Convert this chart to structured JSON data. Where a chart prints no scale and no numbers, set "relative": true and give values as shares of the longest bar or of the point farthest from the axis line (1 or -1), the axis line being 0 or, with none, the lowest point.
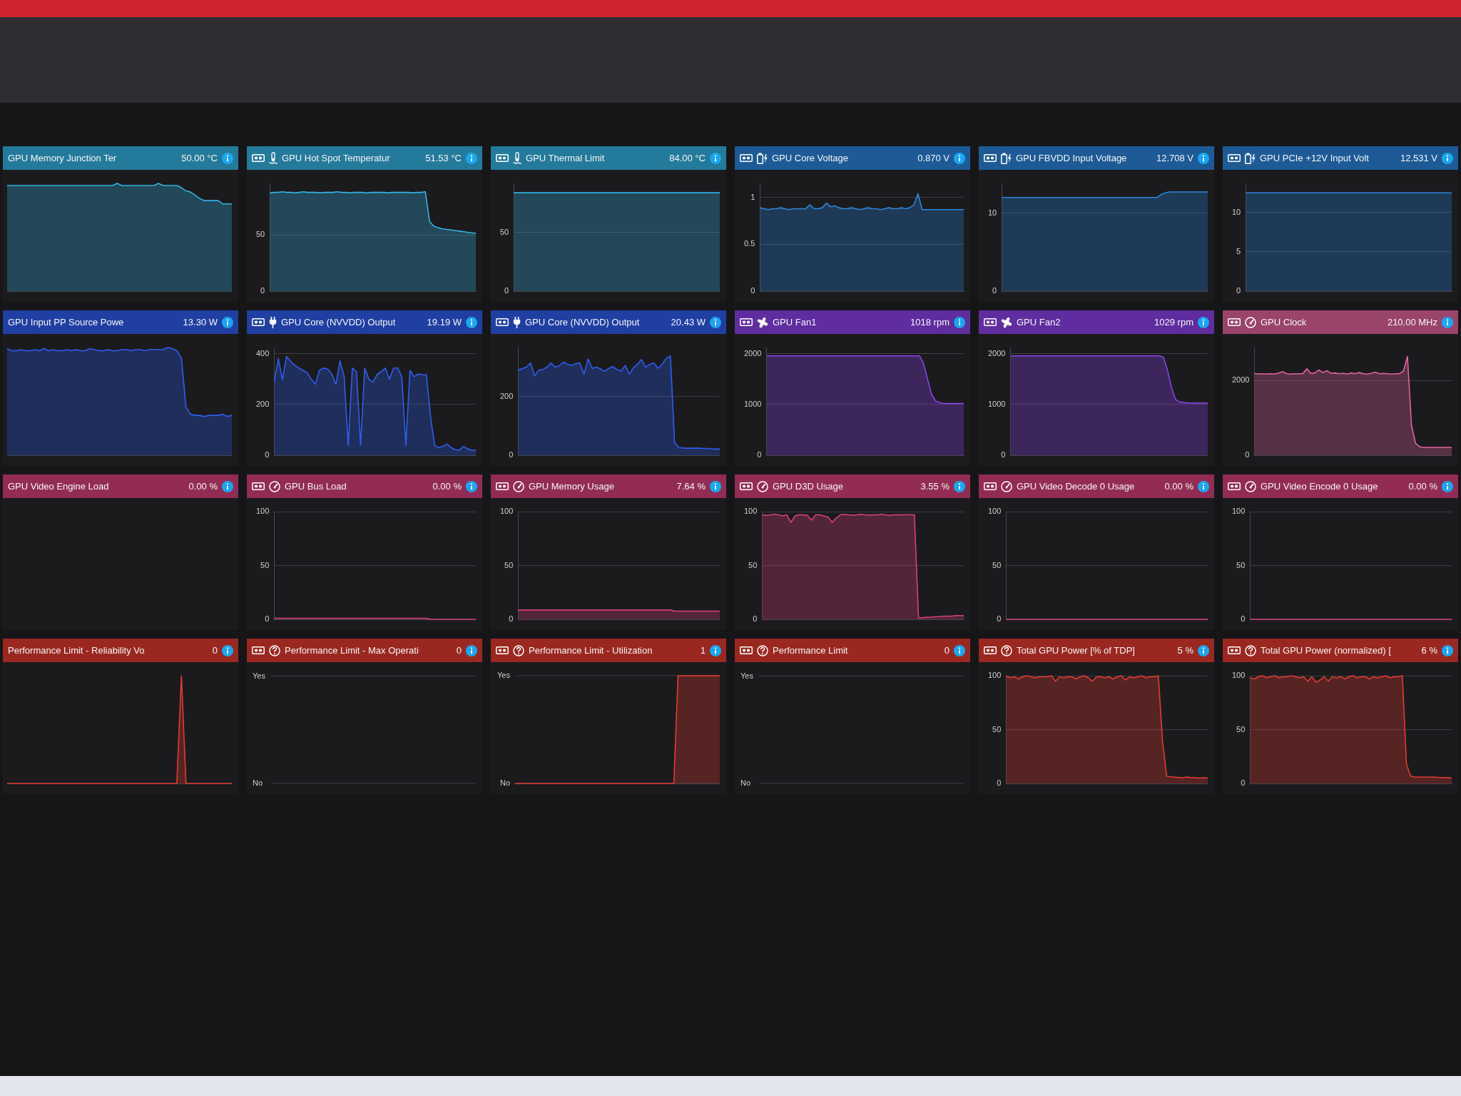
{
  "chart_data": [
    {
      "type": "area",
      "title": "GPU Memory Junction Ter",
      "subtitle": "50.00 °C",
      "relative": true,
      "marker": "none",
      "color": "#35b3e4",
      "categories": [
        null,
        null,
        null,
        null,
        null,
        null,
        null,
        null,
        null,
        null,
        null,
        null,
        null,
        null,
        null,
        null,
        null,
        null,
        null,
        null,
        null,
        null,
        null,
        null,
        null,
        null,
        null,
        null,
        null,
        null,
        null,
        null,
        null,
        null,
        null,
        null,
        null,
        null,
        null,
        null,
        null,
        null,
        null,
        null,
        null,
        null,
        null,
        null,
        null,
        null
      ],
      "values": [
        0.98,
        0.98,
        0.98,
        0.98,
        0.98,
        0.98,
        0.98,
        0.98,
        0.98,
        0.98,
        0.98,
        0.98,
        0.98,
        0.98,
        0.98,
        0.98,
        0.98,
        0.98,
        0.98,
        0.98,
        0.98,
        0.98,
        0.98,
        0.98,
        1,
        0.98,
        0.98,
        0.98,
        0.98,
        0.98,
        0.98,
        0.98,
        0.98,
        1,
        0.98,
        0.98,
        0.98,
        0.98,
        0.96,
        0.93,
        0.92,
        0.89,
        0.86,
        0.84,
        0.84,
        0.84,
        0.84,
        0.81,
        0.81,
        0.81
      ]
    },
    {
      "type": "area",
      "title": "GPU Hot Spot Temperatur",
      "subtitle": "51.53 °C",
      "marker": "none",
      "grid": "y",
      "color": "#35b3e4",
      "ylim": [
        0,
        96
      ],
      "yticks": [
        0,
        50
      ],
      "categories": [
        null,
        null,
        null,
        null,
        null,
        null,
        null,
        null,
        null,
        null,
        null,
        null,
        null,
        null,
        null,
        null,
        null,
        null,
        null,
        null,
        null,
        null,
        null,
        null,
        null,
        null,
        null,
        null,
        null,
        null,
        null,
        null,
        null,
        null,
        null,
        null,
        null,
        null,
        null,
        null,
        null,
        null,
        null,
        null,
        null,
        null,
        null,
        null,
        null,
        null
      ],
      "values": [
        87.5,
        88,
        88,
        88.5,
        88,
        88,
        87.5,
        88,
        88.5,
        88,
        88,
        88,
        87.5,
        88,
        88,
        88,
        88.5,
        88,
        88,
        87.5,
        88,
        88,
        88,
        87.5,
        88,
        88,
        88,
        88,
        87.5,
        88,
        88,
        88,
        88,
        88,
        87.5,
        88,
        88,
        88.5,
        62,
        58,
        56.5,
        55.5,
        55,
        54.5,
        54,
        53.5,
        53,
        52.5,
        52,
        51.5
      ]
    },
    {
      "type": "area",
      "title": "GPU Thermal Limit",
      "subtitle": "84.00 °C",
      "marker": "none",
      "grid": "y",
      "color": "#35b3e4",
      "ylim": [
        0,
        92
      ],
      "yticks": [
        0,
        50
      ],
      "categories": [
        null,
        null,
        null,
        null,
        null,
        null,
        null,
        null,
        null,
        null,
        null,
        null,
        null,
        null,
        null,
        null,
        null,
        null,
        null,
        null,
        null,
        null,
        null,
        null,
        null,
        null,
        null,
        null,
        null,
        null,
        null,
        null,
        null,
        null,
        null,
        null,
        null,
        null,
        null,
        null,
        null,
        null,
        null,
        null,
        null,
        null,
        null,
        null,
        null,
        null
      ],
      "values": [
        84,
        84,
        84,
        84,
        84,
        84,
        84,
        84,
        84,
        84,
        84,
        84,
        84,
        84,
        84,
        84,
        84,
        84,
        84,
        84,
        84,
        84,
        84,
        84,
        84,
        84,
        84,
        84,
        84,
        84,
        84,
        84,
        84,
        84,
        84,
        84,
        84,
        84,
        84,
        84,
        84,
        84,
        84,
        84,
        84,
        84,
        84,
        84,
        84,
        84
      ]
    },
    {
      "type": "area",
      "title": "GPU Core Voltage",
      "subtitle": "0.870 V",
      "marker": "none",
      "grid": "y",
      "color": "#2c86dc",
      "ylim": [
        0,
        1.15
      ],
      "yticks": [
        0,
        0.5,
        1
      ],
      "categories": [
        null,
        null,
        null,
        null,
        null,
        null,
        null,
        null,
        null,
        null,
        null,
        null,
        null,
        null,
        null,
        null,
        null,
        null,
        null,
        null,
        null,
        null,
        null,
        null,
        null,
        null,
        null,
        null,
        null,
        null,
        null,
        null,
        null,
        null,
        null,
        null,
        null,
        null,
        null,
        null,
        null,
        null,
        null,
        null,
        null,
        null,
        null,
        null,
        null,
        null
      ],
      "values": [
        0.89,
        0.88,
        0.87,
        0.88,
        0.88,
        0.89,
        0.88,
        0.87,
        0.88,
        0.88,
        0.88,
        0.88,
        0.92,
        0.88,
        0.88,
        0.89,
        0.94,
        0.9,
        0.91,
        0.89,
        0.88,
        0.88,
        0.89,
        0.88,
        0.87,
        0.88,
        0.89,
        0.88,
        0.88,
        0.87,
        0.88,
        0.89,
        0.88,
        0.88,
        0.89,
        0.88,
        0.89,
        0.92,
        1.04,
        0.87,
        0.87,
        0.87,
        0.87,
        0.87,
        0.87,
        0.87,
        0.87,
        0.87,
        0.87,
        0.87
      ]
    },
    {
      "type": "area",
      "title": "GPU FBVDD Input Voltage",
      "subtitle": "12.708 V",
      "marker": "none",
      "grid": "y",
      "color": "#2c86dc",
      "ylim": [
        0,
        13.8
      ],
      "yticks": [
        0,
        10
      ],
      "categories": [
        null,
        null,
        null,
        null,
        null,
        null,
        null,
        null,
        null,
        null,
        null,
        null,
        null,
        null,
        null,
        null,
        null,
        null,
        null,
        null,
        null,
        null,
        null,
        null,
        null,
        null,
        null,
        null,
        null,
        null,
        null,
        null,
        null,
        null,
        null,
        null,
        null,
        null,
        null,
        null,
        null,
        null,
        null,
        null,
        null,
        null,
        null,
        null,
        null,
        null
      ],
      "values": [
        12,
        12,
        12,
        12,
        12,
        12,
        12,
        12,
        12,
        12,
        12,
        12,
        12,
        12,
        12,
        12,
        12,
        12,
        12,
        12,
        12,
        12,
        12,
        12,
        12,
        12,
        12,
        12,
        12,
        12,
        12,
        12,
        12,
        12,
        12,
        12,
        12,
        12,
        12.4,
        12.6,
        12.7,
        12.7,
        12.7,
        12.7,
        12.7,
        12.7,
        12.7,
        12.7,
        12.7,
        12.7
      ]
    },
    {
      "type": "area",
      "title": "GPU PCIe +12V Input Volt",
      "subtitle": "12.531 V",
      "marker": "none",
      "grid": "y",
      "color": "#2c86dc",
      "ylim": [
        0,
        13.7
      ],
      "yticks": [
        0,
        5,
        10
      ],
      "categories": [
        null,
        null,
        null,
        null,
        null,
        null,
        null,
        null,
        null,
        null,
        null,
        null,
        null,
        null,
        null,
        null,
        null,
        null,
        null,
        null,
        null,
        null,
        null,
        null,
        null,
        null,
        null,
        null,
        null,
        null,
        null,
        null,
        null,
        null,
        null,
        null,
        null,
        null,
        null,
        null,
        null,
        null,
        null,
        null,
        null,
        null,
        null,
        null,
        null,
        null
      ],
      "values": [
        12.5,
        12.5,
        12.5,
        12.5,
        12.5,
        12.5,
        12.5,
        12.5,
        12.5,
        12.5,
        12.5,
        12.5,
        12.5,
        12.5,
        12.5,
        12.5,
        12.5,
        12.5,
        12.5,
        12.5,
        12.5,
        12.5,
        12.5,
        12.5,
        12.5,
        12.5,
        12.5,
        12.5,
        12.5,
        12.5,
        12.5,
        12.5,
        12.5,
        12.5,
        12.5,
        12.5,
        12.5,
        12.5,
        12.5,
        12.5,
        12.5,
        12.5,
        12.5,
        12.5,
        12.5,
        12.5,
        12.5,
        12.5,
        12.5,
        12.5
      ]
    },
    {
      "type": "area",
      "title": "GPU Input PP Source Powe",
      "subtitle": "13.30 W",
      "relative": true,
      "marker": "none",
      "color": "#2f5df0",
      "categories": [
        null,
        null,
        null,
        null,
        null,
        null,
        null,
        null,
        null,
        null,
        null,
        null,
        null,
        null,
        null,
        null,
        null,
        null,
        null,
        null,
        null,
        null,
        null,
        null,
        null,
        null,
        null,
        null,
        null,
        null,
        null,
        null,
        null,
        null,
        null,
        null,
        null,
        null,
        null,
        null,
        null,
        null,
        null,
        null,
        null,
        null,
        null,
        null,
        null,
        null
      ],
      "values": [
        0.99,
        0.97,
        0.97,
        0.98,
        0.97,
        0.97,
        0.98,
        0.97,
        0.99,
        0.97,
        0.98,
        0.97,
        0.97,
        0.98,
        0.97,
        0.98,
        0.97,
        0.97,
        0.99,
        0.98,
        0.97,
        0.97,
        0.98,
        0.97,
        0.97,
        0.98,
        0.98,
        0.97,
        0.98,
        0.98,
        0.97,
        0.98,
        0.98,
        0.98,
        0.98,
        1,
        0.99,
        0.97,
        0.9,
        0.45,
        0.38,
        0.37,
        0.37,
        0.36,
        0.37,
        0.37,
        0.37,
        0.38,
        0.36,
        0.37
      ]
    },
    {
      "type": "area",
      "title": "GPU Core (NVVDD) Output",
      "subtitle": "19.19 W",
      "marker": "none",
      "grid": "y",
      "color": "#2f5df0",
      "ylim": [
        0,
        425
      ],
      "yticks": [
        0,
        200,
        400
      ],
      "categories": [
        null,
        null,
        null,
        null,
        null,
        null,
        null,
        null,
        null,
        null,
        null,
        null,
        null,
        null,
        null,
        null,
        null,
        null,
        null,
        null,
        null,
        null,
        null,
        null,
        null,
        null,
        null,
        null,
        null,
        null,
        null,
        null,
        null,
        null,
        null,
        null,
        null,
        null,
        null,
        null,
        null,
        null,
        null,
        null,
        null,
        null,
        null,
        null,
        null,
        null
      ],
      "values": [
        289,
        381,
        298,
        390,
        370,
        355,
        344,
        335,
        325,
        300,
        280,
        335,
        344,
        340,
        320,
        280,
        372,
        310,
        39,
        344,
        330,
        39,
        344,
        300,
        289,
        318,
        330,
        344,
        300,
        344,
        344,
        310,
        39,
        335,
        310,
        320,
        318,
        317,
        150,
        39,
        30,
        35,
        44,
        30,
        22,
        20,
        35,
        25,
        20,
        19
      ]
    },
    {
      "type": "area",
      "title": "GPU Core (NVVDD) Output",
      "subtitle": "20.43 W",
      "marker": "none",
      "grid": "y",
      "color": "#2f5df0",
      "ylim": [
        0,
        367
      ],
      "yticks": [
        0,
        200
      ],
      "categories": [
        null,
        null,
        null,
        null,
        null,
        null,
        null,
        null,
        null,
        null,
        null,
        null,
        null,
        null,
        null,
        null,
        null,
        null,
        null,
        null,
        null,
        null,
        null,
        null,
        null,
        null,
        null,
        null,
        null,
        null,
        null,
        null,
        null,
        null,
        null,
        null,
        null,
        null,
        null,
        null,
        null,
        null,
        null,
        null,
        null,
        null,
        null,
        null,
        null,
        null
      ],
      "values": [
        290,
        295,
        300,
        314,
        270,
        290,
        292,
        300,
        314,
        300,
        305,
        317,
        310,
        306,
        312,
        314,
        276,
        328,
        296,
        300,
        294,
        286,
        296,
        302,
        292,
        286,
        306,
        276,
        298,
        310,
        326,
        300,
        310,
        314,
        296,
        310,
        330,
        338,
        45,
        26,
        25,
        24,
        24,
        24,
        24,
        23,
        23,
        22,
        21,
        21
      ]
    },
    {
      "type": "area",
      "title": "GPU Fan1",
      "subtitle": "1018 rpm",
      "marker": "none",
      "grid": "y",
      "color": "#8c42ea",
      "ylim": [
        0,
        2125
      ],
      "yticks": [
        0,
        1000,
        2000
      ],
      "categories": [
        null,
        null,
        null,
        null,
        null,
        null,
        null,
        null,
        null,
        null,
        null,
        null,
        null,
        null,
        null,
        null,
        null,
        null,
        null,
        null,
        null,
        null,
        null,
        null,
        null,
        null,
        null,
        null,
        null,
        null,
        null,
        null,
        null,
        null,
        null,
        null,
        null,
        null,
        null,
        null,
        null,
        null,
        null,
        null,
        null,
        null,
        null,
        null,
        null,
        null
      ],
      "values": [
        1960,
        1960,
        1960,
        1960,
        1960,
        1960,
        1960,
        1960,
        1960,
        1960,
        1960,
        1960,
        1960,
        1960,
        1960,
        1960,
        1960,
        1960,
        1960,
        1960,
        1960,
        1960,
        1960,
        1960,
        1960,
        1960,
        1960,
        1960,
        1960,
        1960,
        1960,
        1960,
        1960,
        1960,
        1960,
        1960,
        1960,
        1960,
        1960,
        1810,
        1500,
        1200,
        1070,
        1040,
        1020,
        1020,
        1020,
        1020,
        1020,
        1020
      ]
    },
    {
      "type": "area",
      "title": "GPU Fan2",
      "subtitle": "1029 rpm",
      "marker": "none",
      "grid": "y",
      "color": "#8c42ea",
      "ylim": [
        0,
        2125
      ],
      "yticks": [
        0,
        1000,
        2000
      ],
      "categories": [
        null,
        null,
        null,
        null,
        null,
        null,
        null,
        null,
        null,
        null,
        null,
        null,
        null,
        null,
        null,
        null,
        null,
        null,
        null,
        null,
        null,
        null,
        null,
        null,
        null,
        null,
        null,
        null,
        null,
        null,
        null,
        null,
        null,
        null,
        null,
        null,
        null,
        null,
        null,
        null,
        null,
        null,
        null,
        null,
        null,
        null,
        null,
        null,
        null,
        null
      ],
      "values": [
        1960,
        1960,
        1960,
        1960,
        1960,
        1960,
        1960,
        1960,
        1960,
        1960,
        1960,
        1960,
        1960,
        1960,
        1960,
        1960,
        1960,
        1960,
        1960,
        1960,
        1960,
        1960,
        1960,
        1960,
        1960,
        1960,
        1960,
        1960,
        1960,
        1960,
        1960,
        1960,
        1960,
        1960,
        1960,
        1960,
        1960,
        1960,
        1930,
        1680,
        1330,
        1100,
        1050,
        1040,
        1030,
        1030,
        1030,
        1030,
        1030,
        1030
      ]
    },
    {
      "type": "area",
      "title": "GPU Clock",
      "subtitle": "210.00 MHz",
      "marker": "none",
      "grid": "y",
      "color": "#e2649e",
      "ylim": [
        0,
        2880
      ],
      "yticks": [
        0,
        2000
      ],
      "categories": [
        null,
        null,
        null,
        null,
        null,
        null,
        null,
        null,
        null,
        null,
        null,
        null,
        null,
        null,
        null,
        null,
        null,
        null,
        null,
        null,
        null,
        null,
        null,
        null,
        null,
        null,
        null,
        null,
        null,
        null,
        null,
        null,
        null,
        null,
        null,
        null,
        null,
        null,
        null,
        null,
        null,
        null,
        null,
        null,
        null,
        null,
        null,
        null,
        null,
        null
      ],
      "values": [
        2190,
        2170,
        2180,
        2170,
        2180,
        2170,
        2200,
        2230,
        2180,
        2170,
        2180,
        2180,
        2180,
        2310,
        2190,
        2200,
        2280,
        2210,
        2260,
        2190,
        2200,
        2180,
        2190,
        2170,
        2200,
        2180,
        2210,
        2180,
        2170,
        2190,
        2220,
        2180,
        2190,
        2180,
        2170,
        2180,
        2180,
        2250,
        2640,
        800,
        320,
        230,
        210,
        210,
        210,
        210,
        210,
        210,
        210,
        210
      ]
    },
    {
      "type": "other",
      "title": "GPU Video Engine Load",
      "subtitle": "0.00 %",
      "color": "#d8407c"
    },
    {
      "type": "area",
      "title": "GPU Bus Load",
      "subtitle": "0.00 %",
      "marker": "none",
      "grid": "y",
      "color": "#d8407c",
      "ylim": [
        0,
        100
      ],
      "yticks": [
        0,
        50,
        100
      ],
      "categories": [
        null,
        null,
        null,
        null,
        null,
        null,
        null,
        null,
        null,
        null,
        null,
        null,
        null,
        null,
        null,
        null,
        null,
        null,
        null,
        null,
        null,
        null,
        null,
        null,
        null,
        null,
        null,
        null,
        null,
        null,
        null,
        null,
        null,
        null,
        null,
        null,
        null,
        null,
        null,
        null,
        null,
        null,
        null,
        null,
        null,
        null,
        null,
        null,
        null,
        null
      ],
      "values": [
        1,
        1,
        1,
        1,
        1,
        1,
        1,
        1,
        1,
        1,
        1,
        1,
        1,
        1,
        1,
        1,
        1,
        1,
        1,
        1,
        1,
        1,
        1,
        1,
        1,
        1,
        1,
        1,
        1,
        1,
        1,
        1,
        1,
        1,
        1,
        1,
        1,
        1,
        0,
        0,
        0,
        0,
        0,
        0,
        0,
        0,
        0,
        0,
        0,
        0
      ]
    },
    {
      "type": "area",
      "title": "GPU Memory Usage",
      "subtitle": "7.64 %",
      "marker": "none",
      "grid": "y",
      "color": "#d8407c",
      "ylim": [
        0,
        100
      ],
      "yticks": [
        0,
        50,
        100
      ],
      "categories": [
        null,
        null,
        null,
        null,
        null,
        null,
        null,
        null,
        null,
        null,
        null,
        null,
        null,
        null,
        null,
        null,
        null,
        null,
        null,
        null,
        null,
        null,
        null,
        null,
        null,
        null,
        null,
        null,
        null,
        null,
        null,
        null,
        null,
        null,
        null,
        null,
        null,
        null,
        null,
        null,
        null,
        null,
        null,
        null,
        null,
        null,
        null,
        null,
        null,
        null
      ],
      "values": [
        8.7,
        8.7,
        8.7,
        8.7,
        8.7,
        8.7,
        8.7,
        8.7,
        8.7,
        8.7,
        8.7,
        8.7,
        8.7,
        8.7,
        8.7,
        8.7,
        8.7,
        8.7,
        8.7,
        8.7,
        8.7,
        8.7,
        8.7,
        8.7,
        8.7,
        8.7,
        8.7,
        8.7,
        8.7,
        8.7,
        8.7,
        8.7,
        8.7,
        8.7,
        8.7,
        8.7,
        8.7,
        8.7,
        7.6,
        7.6,
        7.6,
        7.6,
        7.6,
        7.6,
        7.6,
        7.6,
        7.6,
        7.6,
        7.6,
        7.6
      ]
    },
    {
      "type": "area",
      "title": "GPU D3D Usage",
      "subtitle": "3.55 %",
      "marker": "none",
      "grid": "y",
      "color": "#d8407c",
      "ylim": [
        0,
        100
      ],
      "yticks": [
        0,
        50,
        100
      ],
      "categories": [
        null,
        null,
        null,
        null,
        null,
        null,
        null,
        null,
        null,
        null,
        null,
        null,
        null,
        null,
        null,
        null,
        null,
        null,
        null,
        null,
        null,
        null,
        null,
        null,
        null,
        null,
        null,
        null,
        null,
        null,
        null,
        null,
        null,
        null,
        null,
        null,
        null,
        null,
        null,
        null,
        null,
        null,
        null,
        null,
        null,
        null,
        null,
        null,
        null,
        null
      ],
      "values": [
        97,
        96.5,
        97,
        97.5,
        97,
        96,
        97,
        90,
        96,
        97,
        97,
        96.5,
        92,
        97,
        97,
        96,
        95,
        90,
        94,
        97,
        97.5,
        97,
        96.5,
        97,
        97.5,
        97,
        96.8,
        97,
        97,
        97.5,
        97,
        96.5,
        97,
        97,
        97,
        97.2,
        97,
        97,
        1.5,
        1.5,
        2,
        2,
        2.5,
        2.5,
        3,
        3,
        3,
        3.5,
        3.5,
        3.5
      ]
    },
    {
      "type": "line",
      "title": "GPU Video Decode 0 Usage",
      "subtitle": "0.00 %",
      "marker": "none",
      "grid": "y",
      "color": "#d8407c",
      "ylim": [
        0,
        100
      ],
      "yticks": [
        0,
        50,
        100
      ],
      "categories": [
        null,
        null,
        null,
        null,
        null,
        null,
        null,
        null,
        null,
        null,
        null,
        null,
        null,
        null,
        null,
        null,
        null,
        null,
        null,
        null,
        null,
        null,
        null,
        null,
        null,
        null,
        null,
        null,
        null,
        null,
        null,
        null,
        null,
        null,
        null,
        null,
        null,
        null,
        null,
        null,
        null,
        null,
        null,
        null,
        null,
        null,
        null,
        null,
        null,
        null
      ],
      "values": [
        0,
        0,
        0,
        0,
        0,
        0,
        0,
        0,
        0,
        0,
        0,
        0,
        0,
        0,
        0,
        0,
        0,
        0,
        0,
        0,
        0,
        0,
        0,
        0,
        0,
        0,
        0,
        0,
        0,
        0,
        0,
        0,
        0,
        0,
        0,
        0,
        0,
        0,
        0,
        0,
        0,
        0,
        0,
        0,
        0,
        0,
        0,
        0,
        0,
        0
      ]
    },
    {
      "type": "line",
      "title": "GPU Video Encode 0 Usage",
      "subtitle": "0.00 %",
      "marker": "none",
      "grid": "y",
      "color": "#d8407c",
      "ylim": [
        0,
        100
      ],
      "yticks": [
        0,
        50,
        100
      ],
      "categories": [
        null,
        null,
        null,
        null,
        null,
        null,
        null,
        null,
        null,
        null,
        null,
        null,
        null,
        null,
        null,
        null,
        null,
        null,
        null,
        null,
        null,
        null,
        null,
        null,
        null,
        null,
        null,
        null,
        null,
        null,
        null,
        null,
        null,
        null,
        null,
        null,
        null,
        null,
        null,
        null,
        null,
        null,
        null,
        null,
        null,
        null,
        null,
        null,
        null,
        null
      ],
      "values": [
        0,
        0,
        0,
        0,
        0,
        0,
        0,
        0,
        0,
        0,
        0,
        0,
        0,
        0,
        0,
        0,
        0,
        0,
        0,
        0,
        0,
        0,
        0,
        0,
        0,
        0,
        0,
        0,
        0,
        0,
        0,
        0,
        0,
        0,
        0,
        0,
        0,
        0,
        0,
        0,
        0,
        0,
        0,
        0,
        0,
        0,
        0,
        0,
        0,
        0
      ]
    },
    {
      "type": "area",
      "title": "Performance Limit - Reliability Vo",
      "subtitle": "0",
      "relative": true,
      "marker": "none",
      "color": "#e23b31",
      "categories": [
        null,
        null,
        null,
        null,
        null,
        null,
        null,
        null,
        null,
        null,
        null,
        null,
        null,
        null,
        null,
        null,
        null,
        null,
        null,
        null,
        null,
        null,
        null,
        null,
        null,
        null,
        null,
        null,
        null,
        null,
        null,
        null,
        null,
        null,
        null,
        null,
        null,
        null,
        null,
        null,
        null,
        null,
        null,
        null,
        null,
        null,
        null,
        null,
        null,
        null
      ],
      "values": [
        0,
        0,
        0,
        0,
        0,
        0,
        0,
        0,
        0,
        0,
        0,
        0,
        0,
        0,
        0,
        0,
        0,
        0,
        0,
        0,
        0,
        0,
        0,
        0,
        0,
        0,
        0,
        0,
        0,
        0,
        0,
        0,
        0,
        0,
        0,
        0,
        0,
        0,
        1,
        0,
        0,
        0,
        0,
        0,
        0,
        0,
        0,
        0,
        0,
        0
      ]
    },
    {
      "type": "other",
      "title": "Performance Limit - Max Operati",
      "subtitle": "0",
      "color": "#e23b31",
      "annotations": [
        "Yes",
        "No"
      ]
    },
    {
      "type": "area",
      "title": "Performance Limit - Utilization",
      "subtitle": "1",
      "relative": true,
      "marker": "none",
      "color": "#e23b31",
      "ref_lines": [
        {
          "axis": "y",
          "value": 1,
          "label": "Yes"
        },
        {
          "axis": "y",
          "value": 0,
          "label": "No"
        }
      ],
      "categories": [
        null,
        null,
        null,
        null,
        null,
        null,
        null,
        null,
        null,
        null,
        null,
        null,
        null,
        null,
        null,
        null,
        null,
        null,
        null,
        null,
        null,
        null,
        null,
        null,
        null,
        null,
        null,
        null,
        null,
        null,
        null,
        null,
        null,
        null,
        null,
        null,
        null,
        null,
        null,
        null,
        null,
        null,
        null,
        null,
        null,
        null,
        null,
        null,
        null,
        null
      ],
      "values": [
        0,
        0,
        0,
        0,
        0,
        0,
        0,
        0,
        0,
        0,
        0,
        0,
        0,
        0,
        0,
        0,
        0,
        0,
        0,
        0,
        0,
        0,
        0,
        0,
        0,
        0,
        0,
        0,
        0,
        0,
        0,
        0,
        0,
        0,
        0,
        0,
        0,
        0,
        0,
        1,
        1,
        1,
        1,
        1,
        1,
        1,
        1,
        1,
        1,
        1
      ]
    },
    {
      "type": "other",
      "title": "Performance Limit",
      "subtitle": "0",
      "color": "#e23b31",
      "annotations": [
        "Yes",
        "No"
      ]
    },
    {
      "type": "area",
      "title": "Total GPU Power [% of TDP]",
      "subtitle": "5 %",
      "marker": "none",
      "grid": "y",
      "color": "#e23b31",
      "ylim": [
        0,
        100
      ],
      "yticks": [
        0,
        50,
        100
      ],
      "categories": [
        null,
        null,
        null,
        null,
        null,
        null,
        null,
        null,
        null,
        null,
        null,
        null,
        null,
        null,
        null,
        null,
        null,
        null,
        null,
        null,
        null,
        null,
        null,
        null,
        null,
        null,
        null,
        null,
        null,
        null,
        null,
        null,
        null,
        null,
        null,
        null,
        null,
        null,
        null,
        null,
        null,
        null,
        null,
        null,
        null,
        null,
        null,
        null,
        null,
        null
      ],
      "values": [
        100,
        98,
        99,
        97,
        99,
        100,
        99,
        98,
        99,
        99,
        99,
        100,
        95,
        99,
        98,
        99,
        99,
        97,
        99,
        100,
        98,
        95,
        99,
        99,
        98,
        99,
        97,
        99,
        100,
        96,
        99,
        98,
        99,
        100,
        98,
        99,
        99,
        100,
        40,
        7,
        6,
        6,
        5.5,
        5.5,
        6,
        5.5,
        5.5,
        5,
        5.5,
        5
      ]
    },
    {
      "type": "area",
      "title": "Total GPU Power (normalized) [",
      "subtitle": "6 %",
      "marker": "none",
      "grid": "y",
      "color": "#e23b31",
      "ylim": [
        0,
        100
      ],
      "yticks": [
        0,
        50,
        100
      ],
      "categories": [
        null,
        null,
        null,
        null,
        null,
        null,
        null,
        null,
        null,
        null,
        null,
        null,
        null,
        null,
        null,
        null,
        null,
        null,
        null,
        null,
        null,
        null,
        null,
        null,
        null,
        null,
        null,
        null,
        null,
        null,
        null,
        null,
        null,
        null,
        null,
        null,
        null,
        null,
        null,
        null,
        null,
        null,
        null,
        null,
        null,
        null,
        null,
        null,
        null,
        null
      ],
      "values": [
        98,
        97,
        99,
        100,
        98,
        99,
        100,
        98,
        99,
        99,
        100,
        99,
        98,
        99,
        95,
        99,
        94,
        96,
        99,
        95,
        99,
        98,
        99,
        97,
        99,
        100,
        98,
        99,
        99,
        97,
        99,
        98,
        99,
        100,
        98,
        99,
        99,
        100,
        18,
        7,
        6,
        6,
        6,
        6,
        6,
        6,
        5.5,
        5.5,
        5.5,
        5
      ]
    }
  ]
}
